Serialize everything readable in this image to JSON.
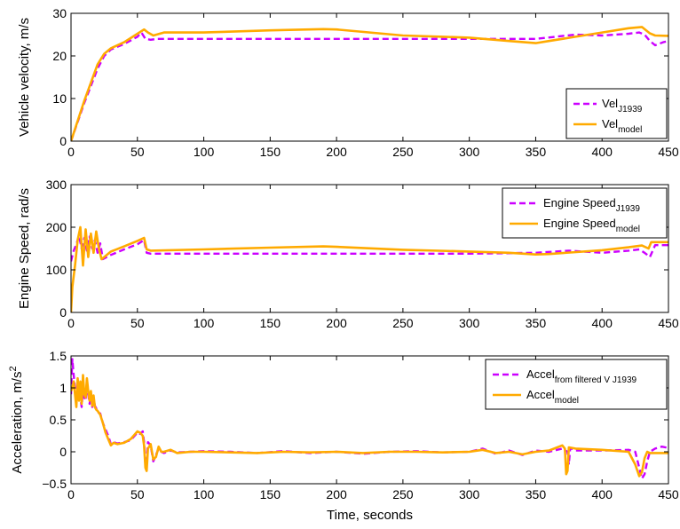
{
  "chart_data": [
    {
      "type": "line",
      "ylabel": "Vehicle velocity, m/s",
      "xlabel": "",
      "xlim": [
        0,
        450
      ],
      "ylim": [
        0,
        30
      ],
      "xticks": [
        0,
        50,
        100,
        150,
        200,
        250,
        300,
        350,
        400,
        450
      ],
      "yticks": [
        0,
        10,
        20,
        30
      ],
      "xtick_labels": [
        "0",
        "50",
        "100",
        "150",
        "200",
        "250",
        "300",
        "350",
        "400",
        "450"
      ],
      "ytick_labels": [
        "0",
        "10",
        "20",
        "30"
      ],
      "legend_position": "bottom-right",
      "series": [
        {
          "name": "Vel",
          "name_sub": "J1939",
          "color": "#cc00ff",
          "dash": "dashed",
          "x": [
            0,
            10,
            20,
            25,
            30,
            40,
            50,
            53,
            56,
            60,
            65,
            100,
            150,
            200,
            250,
            300,
            350,
            380,
            400,
            420,
            428,
            432,
            436,
            440,
            446,
            450
          ],
          "y": [
            0,
            9,
            17,
            20,
            21.5,
            22.8,
            24.5,
            25.5,
            24,
            23.8,
            24,
            24,
            24,
            24,
            24,
            24,
            24,
            25,
            24.8,
            25.2,
            25.5,
            25,
            23.5,
            22.5,
            23.2,
            23.5
          ]
        },
        {
          "name": "Vel",
          "name_sub": "model",
          "color": "#ffaa00",
          "dash": "solid",
          "x": [
            0,
            10,
            20,
            25,
            30,
            40,
            50,
            55,
            58,
            62,
            70,
            100,
            150,
            190,
            200,
            250,
            280,
            300,
            330,
            350,
            360,
            380,
            400,
            420,
            430,
            436,
            440,
            450
          ],
          "y": [
            0,
            9.5,
            18,
            20.5,
            21.8,
            23.2,
            25.2,
            26.2,
            25.5,
            24.8,
            25.5,
            25.5,
            26,
            26.3,
            26.2,
            24.8,
            24.5,
            24.3,
            23.5,
            23,
            23.5,
            24.5,
            25.5,
            26.5,
            26.8,
            25.3,
            24.8,
            24.7
          ]
        }
      ]
    },
    {
      "type": "line",
      "ylabel": "Engine Speed, rad/s",
      "xlabel": "",
      "xlim": [
        0,
        450
      ],
      "ylim": [
        0,
        300
      ],
      "xticks": [
        0,
        50,
        100,
        150,
        200,
        250,
        300,
        350,
        400,
        450
      ],
      "yticks": [
        0,
        100,
        200,
        300
      ],
      "xtick_labels": [
        "0",
        "50",
        "100",
        "150",
        "200",
        "250",
        "300",
        "350",
        "400",
        "450"
      ],
      "ytick_labels": [
        "0",
        "100",
        "200",
        "300"
      ],
      "legend_position": "top-right",
      "series": [
        {
          "name": "Engine Speed",
          "name_sub": "J1939",
          "color": "#cc00ff",
          "dash": "dashed",
          "x": [
            0,
            2,
            4,
            6,
            8,
            10,
            12,
            14,
            16,
            18,
            20,
            22,
            24,
            30,
            40,
            50,
            55,
            57,
            60,
            100,
            150,
            200,
            250,
            300,
            350,
            375,
            400,
            420,
            428,
            432,
            436,
            440,
            450
          ],
          "y": [
            120,
            145,
            160,
            180,
            150,
            175,
            145,
            178,
            150,
            170,
            140,
            162,
            125,
            135,
            148,
            160,
            170,
            140,
            138,
            138,
            138,
            138,
            138,
            138,
            140,
            145,
            140,
            145,
            148,
            140,
            130,
            158,
            158
          ]
        },
        {
          "name": "Engine Speed",
          "name_sub": "model",
          "color": "#ffaa00",
          "dash": "solid",
          "x": [
            0,
            1,
            3,
            5,
            7,
            9,
            11,
            13,
            15,
            17,
            19,
            21,
            23,
            25,
            30,
            40,
            50,
            55,
            57,
            60,
            100,
            150,
            190,
            200,
            250,
            300,
            330,
            350,
            360,
            400,
            420,
            430,
            435,
            437,
            440,
            450
          ],
          "y": [
            0,
            60,
            110,
            170,
            200,
            110,
            195,
            130,
            185,
            140,
            190,
            150,
            125,
            130,
            143,
            155,
            168,
            175,
            148,
            145,
            148,
            152,
            155,
            154,
            147,
            143,
            140,
            136,
            137,
            146,
            153,
            157,
            150,
            165,
            165,
            165
          ]
        }
      ]
    },
    {
      "type": "line",
      "ylabel": "Acceleration, m/s",
      "ylabel_sup": "2",
      "xlabel": "Time, seconds",
      "xlim": [
        0,
        450
      ],
      "ylim": [
        -0.5,
        1.5
      ],
      "xticks": [
        0,
        50,
        100,
        150,
        200,
        250,
        300,
        350,
        400,
        450
      ],
      "yticks": [
        -0.5,
        0,
        0.5,
        1,
        1.5
      ],
      "xtick_labels": [
        "0",
        "50",
        "100",
        "150",
        "200",
        "250",
        "300",
        "350",
        "400",
        "450"
      ],
      "ytick_labels": [
        "−0.5",
        "0",
        "0.5",
        "1",
        "1.5"
      ],
      "legend_position": "top-right",
      "series": [
        {
          "name": "Accel",
          "name_sub": "from filtered V J1939",
          "color": "#cc00ff",
          "dash": "dashed",
          "x": [
            0,
            1,
            2,
            3,
            4,
            5,
            6,
            7,
            8,
            9,
            10,
            11,
            12,
            13,
            14,
            15,
            16,
            17,
            18,
            19,
            20,
            22,
            24,
            26,
            28,
            30,
            32,
            35,
            40,
            45,
            50,
            52,
            54,
            55,
            56,
            57,
            58,
            60,
            62,
            64,
            66,
            68,
            70,
            75,
            80,
            90,
            100,
            120,
            140,
            160,
            180,
            200,
            220,
            240,
            260,
            280,
            300,
            310,
            320,
            330,
            340,
            350,
            360,
            370,
            374,
            375,
            376,
            380,
            400,
            420,
            425,
            428,
            430,
            432,
            434,
            436,
            440,
            445,
            450
          ],
          "y": [
            0.9,
            1.45,
            1.2,
            1.0,
            0.8,
            1.1,
            0.95,
            0.85,
            0.7,
            1.0,
            0.85,
            0.8,
            1.1,
            0.9,
            0.75,
            0.9,
            0.7,
            0.85,
            0.72,
            0.68,
            0.62,
            0.6,
            0.45,
            0.35,
            0.25,
            0.12,
            0.15,
            0.13,
            0.15,
            0.18,
            0.3,
            0.28,
            0.32,
            0.15,
            -0.2,
            -0.1,
            0.15,
            0.1,
            -0.15,
            -0.05,
            0.05,
            0.0,
            -0.02,
            0.02,
            -0.01,
            0.0,
            0.01,
            0.0,
            -0.02,
            0.01,
            -0.02,
            0.0,
            -0.03,
            0.0,
            0.01,
            -0.01,
            0.0,
            0.05,
            -0.03,
            0.02,
            -0.05,
            0.02,
            0.0,
            0.05,
            0.0,
            -0.2,
            0.06,
            0.02,
            0.02,
            0.03,
            0.0,
            -0.25,
            -0.42,
            -0.35,
            -0.15,
            0.0,
            0.05,
            0.08,
            0.06
          ]
        },
        {
          "name": "Accel",
          "name_sub": "model",
          "color": "#ffaa00",
          "dash": "solid",
          "x": [
            0,
            1,
            2,
            3,
            4,
            5,
            6,
            7,
            8,
            9,
            10,
            11,
            12,
            13,
            14,
            15,
            16,
            17,
            18,
            19,
            20,
            22,
            24,
            26,
            28,
            30,
            32,
            35,
            40,
            45,
            50,
            52,
            54,
            55,
            56,
            57,
            58,
            60,
            62,
            64,
            66,
            68,
            70,
            75,
            80,
            90,
            100,
            120,
            140,
            160,
            180,
            200,
            220,
            240,
            260,
            280,
            300,
            310,
            320,
            330,
            340,
            350,
            360,
            370,
            372,
            373,
            374,
            375,
            380,
            400,
            420,
            425,
            428,
            430,
            432,
            434,
            436,
            440,
            445,
            450
          ],
          "y": [
            0.95,
            1.0,
            1.1,
            0.9,
            0.7,
            1.15,
            0.8,
            1.1,
            0.75,
            1.2,
            0.9,
            0.85,
            1.15,
            0.95,
            0.8,
            0.95,
            0.72,
            0.88,
            0.7,
            0.66,
            0.64,
            0.58,
            0.45,
            0.3,
            0.2,
            0.1,
            0.14,
            0.12,
            0.14,
            0.2,
            0.32,
            0.3,
            0.25,
            0.1,
            -0.25,
            -0.3,
            0.05,
            0.12,
            -0.12,
            -0.08,
            0.08,
            0.0,
            0.0,
            0.03,
            -0.02,
            0.0,
            0.0,
            -0.01,
            -0.02,
            0.0,
            -0.01,
            0.0,
            -0.02,
            0.0,
            0.0,
            -0.01,
            0.0,
            0.03,
            -0.02,
            0.0,
            -0.04,
            0.0,
            0.02,
            0.1,
            0.05,
            -0.35,
            -0.3,
            0.07,
            0.05,
            0.03,
            0.0,
            -0.2,
            -0.38,
            -0.32,
            -0.1,
            0.0,
            -0.02,
            -0.02,
            -0.02,
            -0.02
          ]
        }
      ]
    }
  ]
}
